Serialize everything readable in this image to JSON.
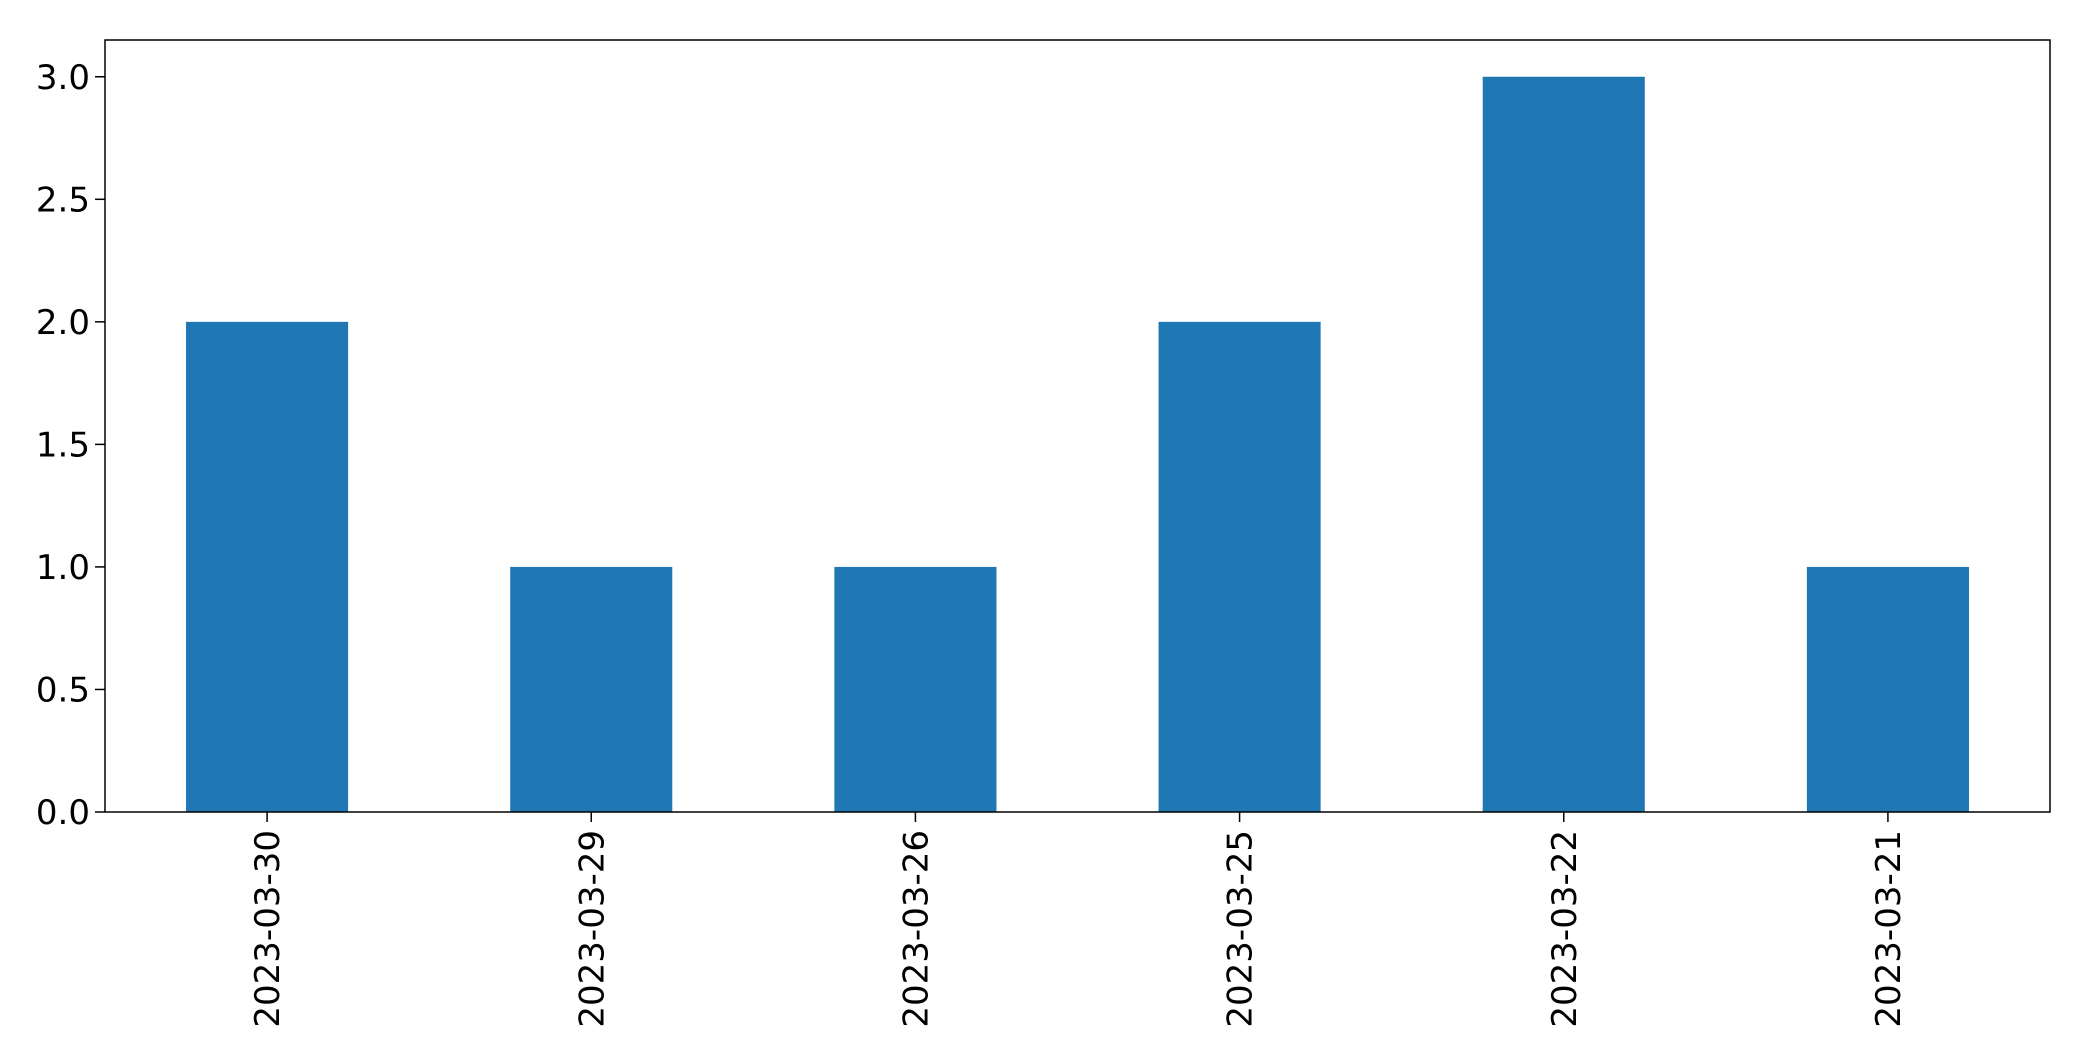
{
  "chart_data": {
    "type": "bar",
    "categories": [
      "2023-03-30",
      "2023-03-29",
      "2023-03-26",
      "2023-03-25",
      "2023-03-22",
      "2023-03-21"
    ],
    "values": [
      2,
      1,
      1,
      2,
      3,
      1
    ],
    "y_ticks": [
      "0.0",
      "0.5",
      "1.0",
      "1.5",
      "2.0",
      "2.5",
      "3.0"
    ],
    "title": "",
    "xlabel": "",
    "ylabel": "",
    "ylim": [
      0,
      3.15
    ],
    "grid": false,
    "legend": "none",
    "bar_color": "#1f77b4"
  }
}
